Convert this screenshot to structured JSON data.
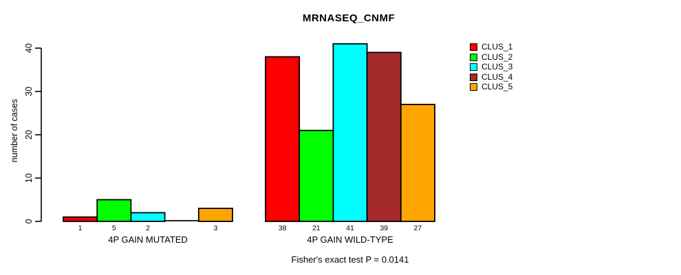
{
  "chart_data": {
    "type": "bar",
    "title": "MRNASEQ_CNMF",
    "ylabel": "number of cases",
    "ylim": [
      0,
      40
    ],
    "yticks": [
      0,
      10,
      20,
      30,
      40
    ],
    "grid": false,
    "legend_position": "right",
    "annotation": "Fisher's exact test P = 0.0141",
    "series": [
      {
        "name": "CLUS_1",
        "color": "#FF0000"
      },
      {
        "name": "CLUS_2",
        "color": "#00FF00"
      },
      {
        "name": "CLUS_3",
        "color": "#00FFFF"
      },
      {
        "name": "CLUS_4",
        "color": "#A52A2A"
      },
      {
        "name": "CLUS_5",
        "color": "#FFA500"
      }
    ],
    "groups": [
      {
        "label": "4P GAIN MUTATED",
        "values": [
          1,
          5,
          2,
          0,
          3
        ],
        "shown_value_labels": [
          "1",
          "5",
          "2",
          "3"
        ]
      },
      {
        "label": "4P GAIN WILD-TYPE",
        "values": [
          38,
          21,
          41,
          39,
          27
        ],
        "shown_value_labels": [
          "38",
          "21",
          "41",
          "39",
          "27"
        ]
      }
    ],
    "bar_border_color": "#000000",
    "value_labels_hide_zero": true
  }
}
